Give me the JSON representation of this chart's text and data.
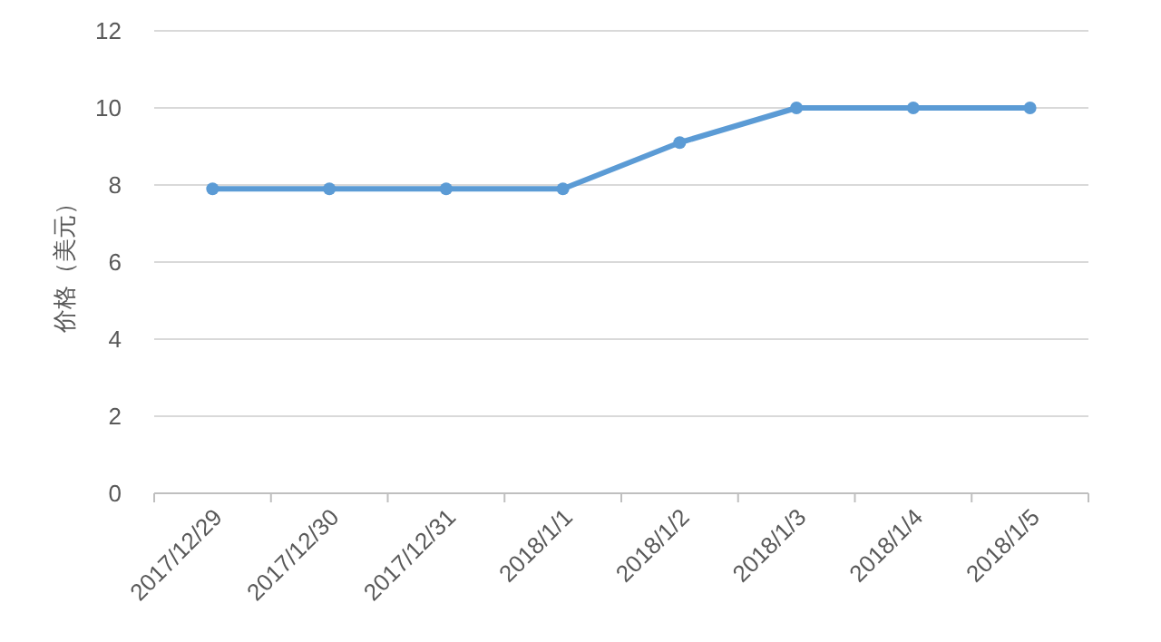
{
  "chart_data": {
    "type": "line",
    "ylabel": "价格（美元）",
    "categories": [
      "2017/12/29",
      "2017/12/30",
      "2017/12/31",
      "2018/1/1",
      "2018/1/2",
      "2018/1/3",
      "2018/1/4",
      "2018/1/5"
    ],
    "series": [
      {
        "color": "#5b9bd5",
        "values": [
          7.9,
          7.9,
          7.9,
          7.9,
          9.1,
          10,
          10,
          10
        ]
      }
    ],
    "ylim": [
      0,
      12
    ],
    "yticks": [
      0,
      2,
      4,
      6,
      8,
      10,
      12
    ],
    "grid": "y",
    "marker": "circle",
    "line_style": "solid"
  }
}
